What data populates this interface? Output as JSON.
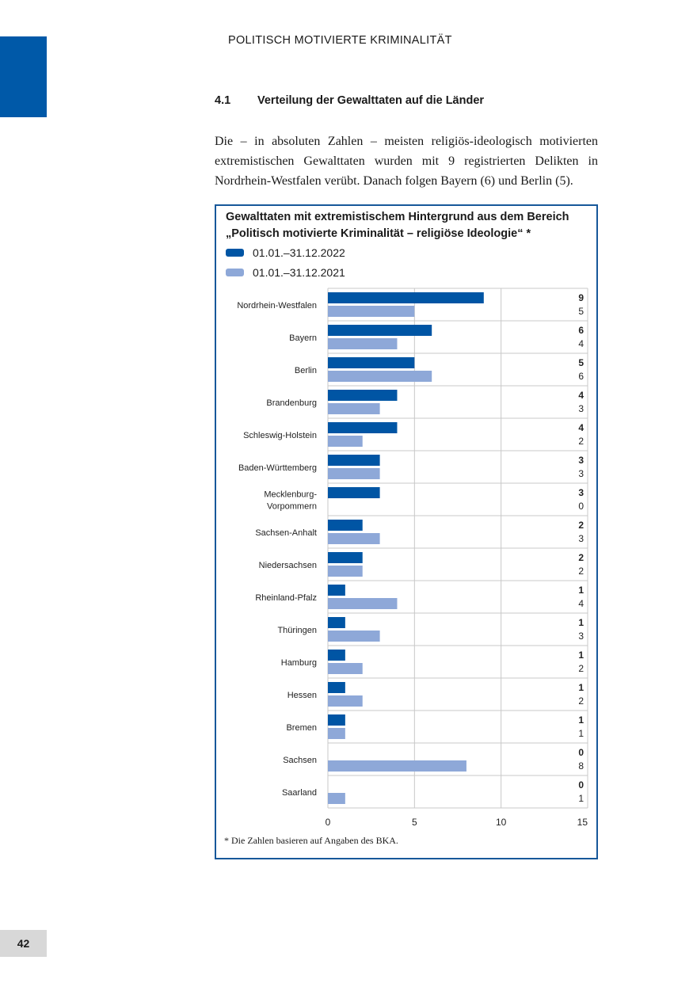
{
  "header": {
    "running_title": "POLITISCH MOTIVIERTE KRIMINALITÄT"
  },
  "section": {
    "number": "4.1",
    "title": "Verteilung der Gewalttaten auf die Länder"
  },
  "paragraph": "Die – in absoluten Zahlen – meisten religiös-ideologisch motivierten extremistischen Gewalttaten wurden mit 9 registrierten Delikten in Nordrhein-Westfalen verübt. Danach folgen Bayern (6) und Berlin (5).",
  "colors": {
    "series_2022": "#0055a4",
    "series_2021": "#8ea8d8",
    "border": "#17589a"
  },
  "chart_data": {
    "type": "bar",
    "orientation": "horizontal",
    "title": "Gewalttaten mit extremistischem Hintergrund aus dem Bereich „Politisch motivierte Kriminalität – religiöse Ideologie“ *",
    "categories": [
      "Nordrhein-Westfalen",
      "Bayern",
      "Berlin",
      "Brandenburg",
      "Schleswig-Holstein",
      "Baden-Württemberg",
      "Mecklenburg-Vorpommern",
      "Sachsen-Anhalt",
      "Niedersachsen",
      "Rheinland-Pfalz",
      "Thüringen",
      "Hamburg",
      "Hessen",
      "Bremen",
      "Sachsen",
      "Saarland"
    ],
    "category_lines": [
      [
        "Nordrhein-Westfalen"
      ],
      [
        "Bayern"
      ],
      [
        "Berlin"
      ],
      [
        "Brandenburg"
      ],
      [
        "Schleswig-Holstein"
      ],
      [
        "Baden-Württemberg"
      ],
      [
        "Mecklenburg-",
        "Vorpommern"
      ],
      [
        "Sachsen-Anhalt"
      ],
      [
        "Niedersachsen"
      ],
      [
        "Rheinland-Pfalz"
      ],
      [
        "Thüringen"
      ],
      [
        "Hamburg"
      ],
      [
        "Hessen"
      ],
      [
        "Bremen"
      ],
      [
        "Sachsen"
      ],
      [
        "Saarland"
      ]
    ],
    "series": [
      {
        "name": "01.01.–31.12.2022",
        "values": [
          9,
          6,
          5,
          4,
          4,
          3,
          3,
          2,
          2,
          1,
          1,
          1,
          1,
          1,
          0,
          0
        ]
      },
      {
        "name": "01.01.–31.12.2021",
        "values": [
          5,
          4,
          6,
          3,
          2,
          3,
          0,
          3,
          2,
          4,
          3,
          2,
          2,
          1,
          8,
          1
        ]
      }
    ],
    "xlim": [
      0,
      15
    ],
    "xticks": [
      "0",
      "5",
      "10",
      "15"
    ],
    "grid": true,
    "legend": "top-left",
    "footnote": "*  Die Zahlen basieren auf Angaben des BKA."
  },
  "page_number": "42"
}
